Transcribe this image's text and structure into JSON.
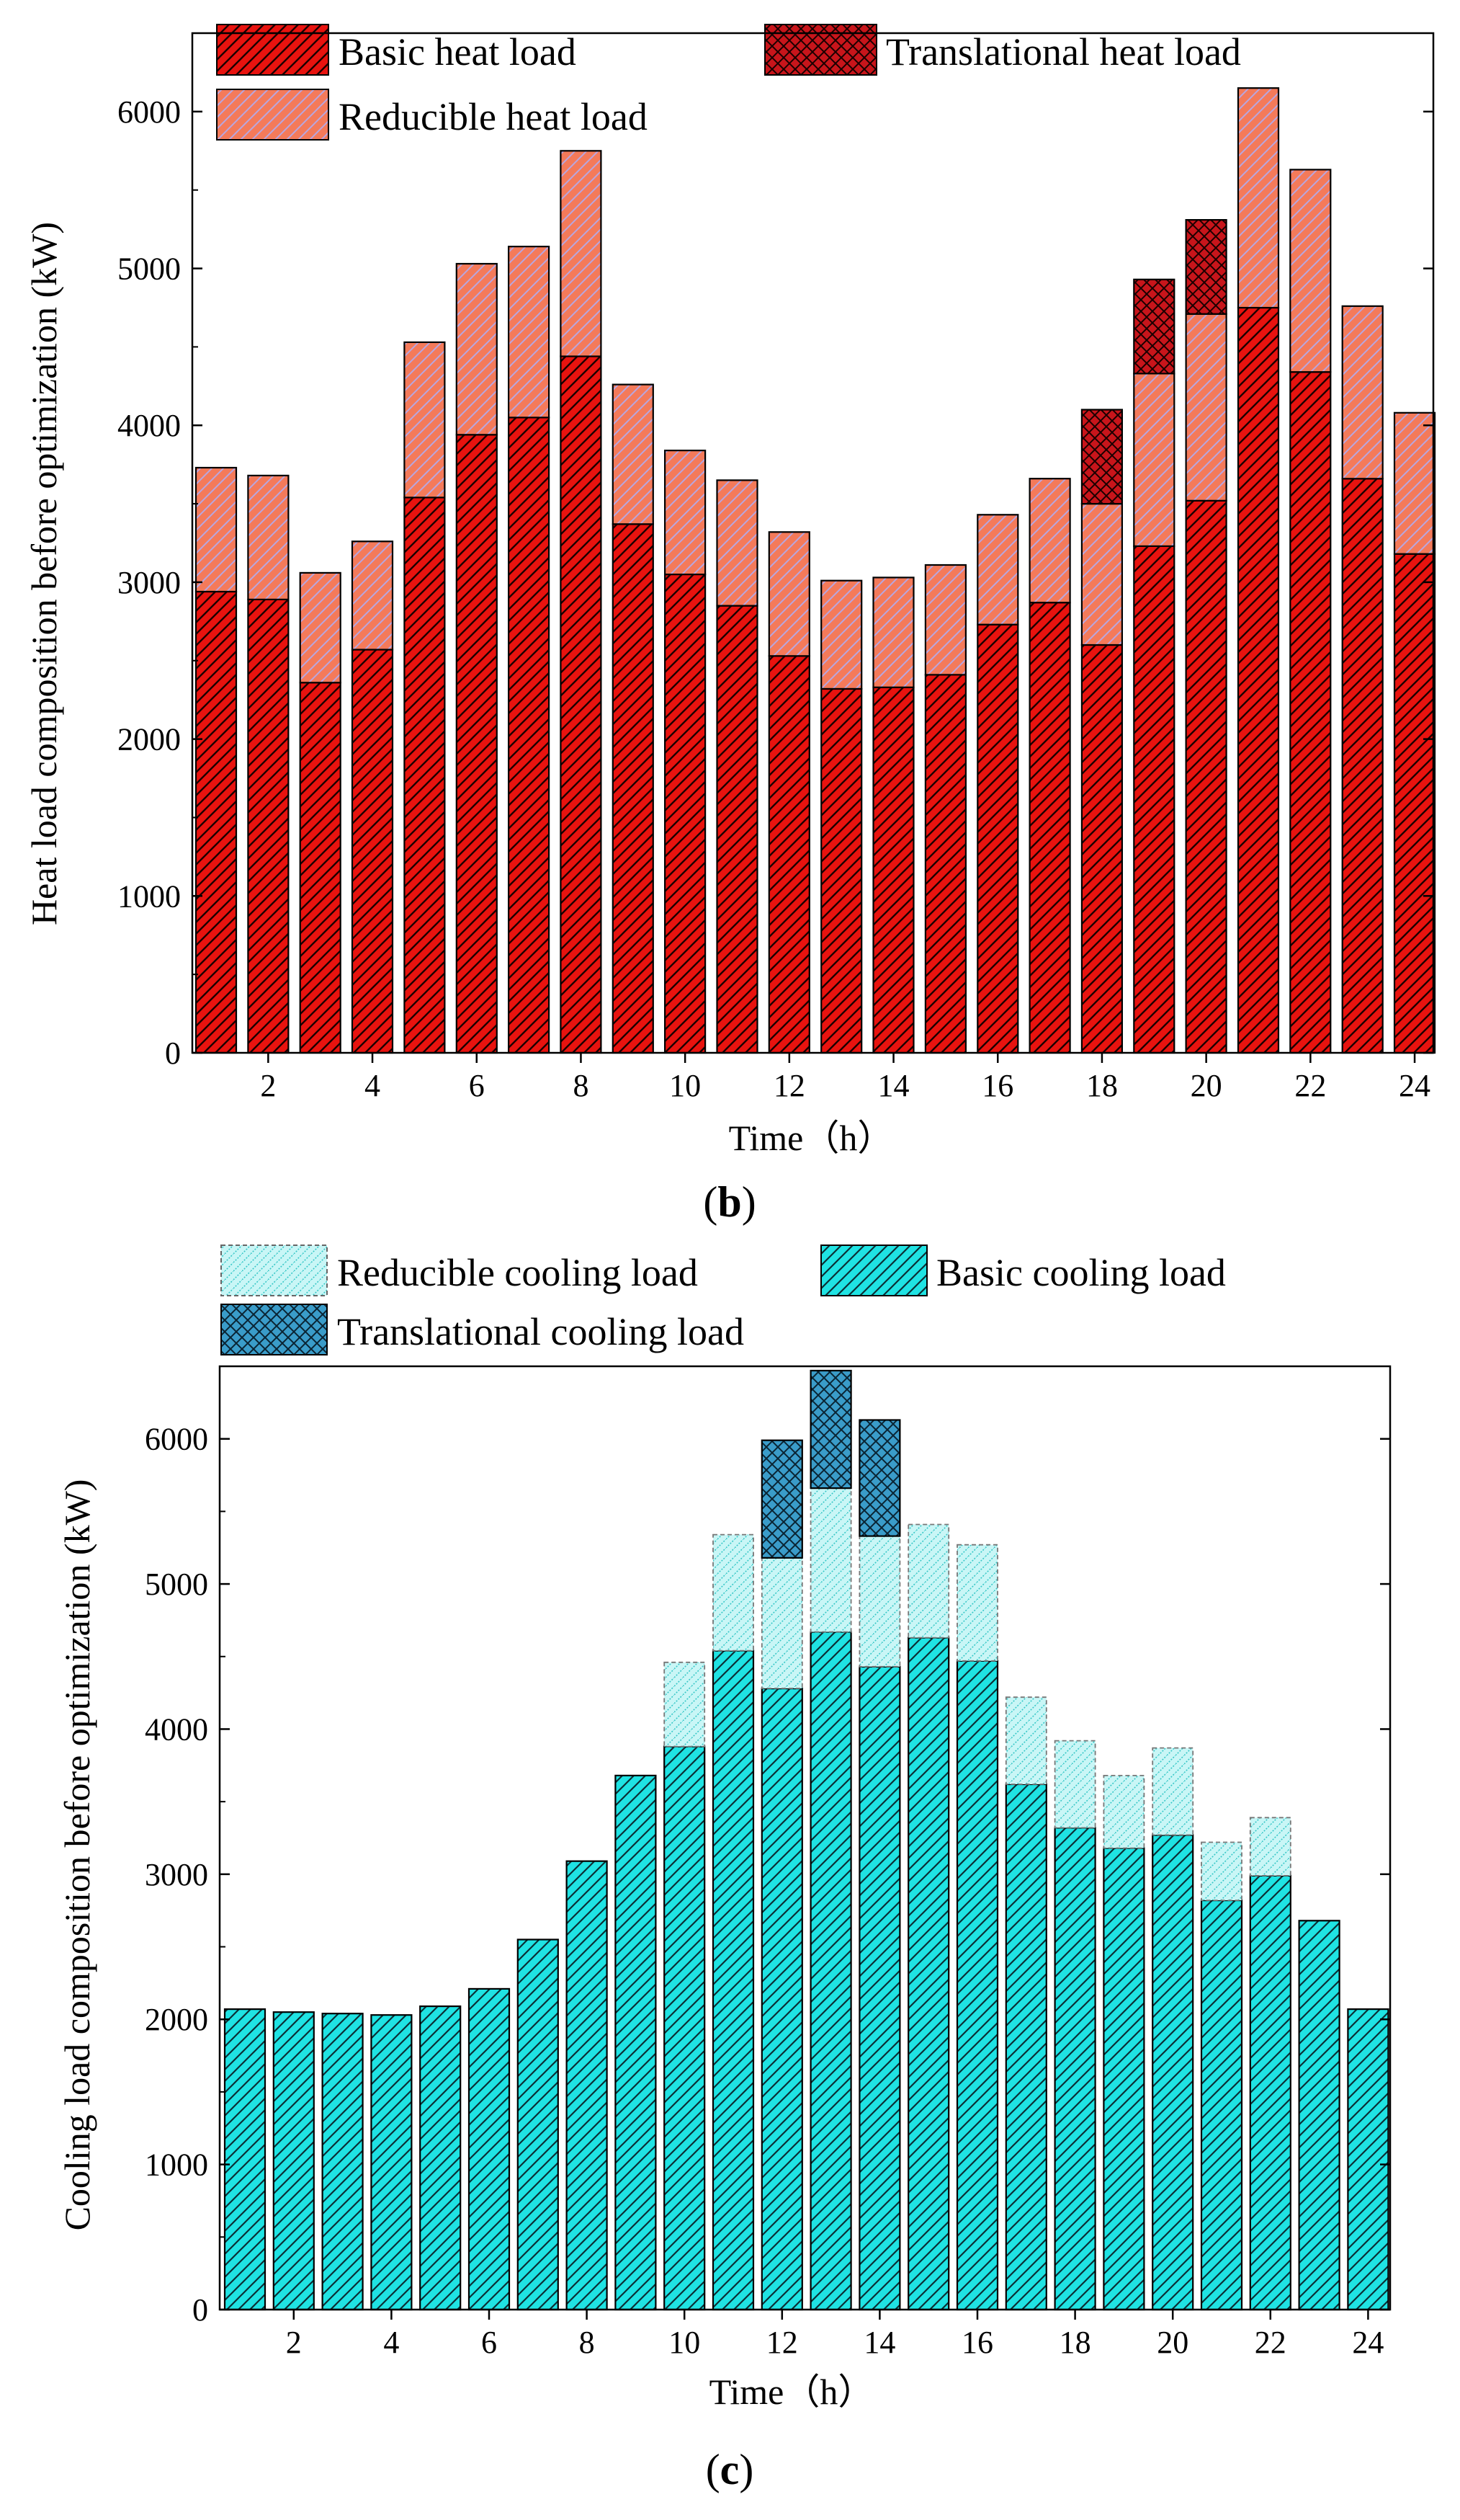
{
  "chart_data": [
    {
      "type": "bar",
      "stacked": true,
      "panel_label": "b",
      "title": "",
      "xlabel": "Time（h）",
      "ylabel": "Heat load composition before optimization (kW)",
      "ylim": [
        0,
        6500
      ],
      "yticks": [
        "0",
        "1000",
        "2000",
        "3000",
        "4000",
        "5000",
        "6000"
      ],
      "xtick_labels": [
        "2",
        "4",
        "6",
        "8",
        "10",
        "12",
        "14",
        "16",
        "18",
        "20",
        "22",
        "24"
      ],
      "categories": [
        "1",
        "2",
        "3",
        "4",
        "5",
        "6",
        "7",
        "8",
        "9",
        "10",
        "11",
        "12",
        "13",
        "14",
        "15",
        "16",
        "17",
        "18",
        "19",
        "20",
        "21",
        "22",
        "23",
        "24"
      ],
      "legend": [
        "Basic heat load",
        "Translational heat load",
        "Reducible heat load"
      ],
      "series": [
        {
          "name": "Basic heat load",
          "color": "#e8130f",
          "pattern": "hatch",
          "values": [
            2940,
            2890,
            2360,
            2570,
            3540,
            3940,
            4050,
            4440,
            3370,
            3050,
            2850,
            2530,
            2320,
            2330,
            2410,
            2730,
            2870,
            2600,
            3230,
            3520,
            4750,
            4340,
            3660,
            3180
          ]
        },
        {
          "name": "Reducible heat load",
          "color": "#f47a5a",
          "pattern": "stripe",
          "values": [
            790,
            790,
            700,
            690,
            990,
            1090,
            1090,
            1310,
            890,
            790,
            800,
            790,
            690,
            700,
            700,
            700,
            790,
            900,
            1100,
            1190,
            1400,
            1290,
            1100,
            900
          ]
        },
        {
          "name": "Translational heat load",
          "color": "#c8151b",
          "pattern": "cross",
          "values": [
            0,
            0,
            0,
            0,
            0,
            0,
            0,
            0,
            0,
            0,
            0,
            0,
            0,
            0,
            0,
            0,
            0,
            600,
            600,
            600,
            0,
            0,
            0,
            0
          ]
        }
      ]
    },
    {
      "type": "bar",
      "stacked": true,
      "panel_label": "c",
      "title": "",
      "xlabel": "Time（h）",
      "ylabel": "Cooling load composition before optimization (kW)",
      "ylim": [
        0,
        6500
      ],
      "yticks": [
        "0",
        "1000",
        "2000",
        "3000",
        "4000",
        "5000",
        "6000"
      ],
      "xtick_labels": [
        "2",
        "4",
        "6",
        "8",
        "10",
        "12",
        "14",
        "16",
        "18",
        "20",
        "22",
        "24"
      ],
      "categories": [
        "1",
        "2",
        "3",
        "4",
        "5",
        "6",
        "7",
        "8",
        "9",
        "10",
        "11",
        "12",
        "13",
        "14",
        "15",
        "16",
        "17",
        "18",
        "19",
        "20",
        "21",
        "22",
        "23",
        "24"
      ],
      "legend": [
        "Reducible cooling load",
        "Basic cooling load",
        "Translational cooling load"
      ],
      "series": [
        {
          "name": "Basic cooling load",
          "color": "#1fe3e3",
          "pattern": "hatch",
          "values": [
            2070,
            2050,
            2040,
            2030,
            2090,
            2210,
            2550,
            3090,
            3680,
            3880,
            4540,
            4280,
            4670,
            4430,
            4630,
            4470,
            3620,
            3320,
            3180,
            3270,
            2820,
            2990,
            2680,
            2070
          ]
        },
        {
          "name": "Reducible cooling load",
          "color": "#a8f0f0",
          "pattern": "dots",
          "values": [
            0,
            0,
            0,
            0,
            0,
            0,
            0,
            0,
            0,
            580,
            800,
            900,
            990,
            900,
            780,
            800,
            600,
            600,
            500,
            600,
            400,
            400,
            0,
            0
          ]
        },
        {
          "name": "Translational cooling load",
          "color": "#3a9cc9",
          "pattern": "cross",
          "values": [
            0,
            0,
            0,
            0,
            0,
            0,
            0,
            0,
            0,
            0,
            0,
            810,
            810,
            800,
            0,
            0,
            0,
            0,
            0,
            0,
            0,
            0,
            0,
            0
          ]
        }
      ]
    }
  ]
}
